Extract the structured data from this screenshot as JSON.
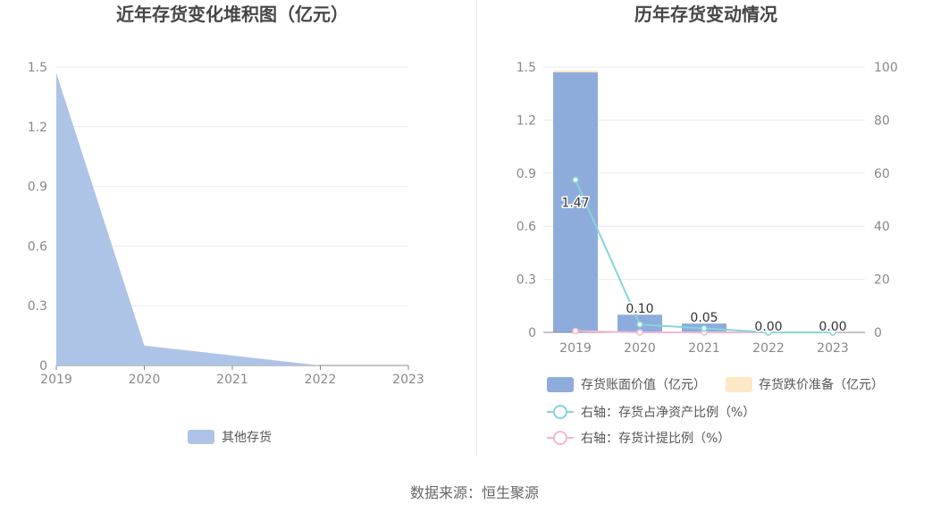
{
  "left_title": "近年存货变化堆积图（亿元）",
  "right_title": "历年存货变动情况",
  "source": "数据来源：恒生聚源",
  "colors": {
    "area": "#aec4e6",
    "bar_value": "#8eacdb",
    "bar_reserve": "#fde7c4",
    "line_ratio": "#86d4da",
    "line_provision": "#f0b8d6",
    "grid": "#e6e9f0",
    "axis": "#888888"
  },
  "chart_data": [
    {
      "type": "area",
      "title": "近年存货变化堆积图（亿元）",
      "x": [
        "2019",
        "2020",
        "2021",
        "2022",
        "2023"
      ],
      "yticks": [
        "0",
        "0.3",
        "0.6",
        "0.9",
        "1.2",
        "1.5"
      ],
      "ylim": [
        0,
        1.5
      ],
      "series": [
        {
          "name": "其他存货",
          "values": [
            1.47,
            0.1,
            0.05,
            0.0,
            0.0
          ]
        }
      ],
      "legend": "bottom",
      "grid": true
    },
    {
      "type": "bar",
      "title": "历年存货变动情况",
      "categories": [
        "2019",
        "2020",
        "2021",
        "2022",
        "2023"
      ],
      "yticks_left": [
        "0",
        "0.3",
        "0.6",
        "0.9",
        "1.2",
        "1.5"
      ],
      "ylim_left": [
        0,
        1.5
      ],
      "yticks_right": [
        "0",
        "20",
        "40",
        "60",
        "80",
        "100"
      ],
      "ylim_right": [
        0,
        100
      ],
      "series": [
        {
          "name": "存货账面价值（亿元）",
          "type": "bar",
          "axis": "left",
          "values": [
            1.47,
            0.1,
            0.05,
            0.0,
            0.0
          ],
          "labels": [
            "1.47",
            "0.10",
            "0.05",
            "0.00",
            "0.00"
          ]
        },
        {
          "name": "存货跌价准备（亿元）",
          "type": "bar",
          "axis": "left",
          "values": [
            0.01,
            0.0,
            0.0,
            0.0,
            0.0
          ]
        },
        {
          "name": "右轴：存货占净资产比例（%）",
          "type": "line",
          "axis": "right",
          "values": [
            57.5,
            3.0,
            1.5,
            0.0,
            0.0
          ]
        },
        {
          "name": "右轴：存货计提比例（%）",
          "type": "line",
          "axis": "right",
          "values": [
            0.5,
            0.0,
            0.0,
            0.0,
            0.0
          ]
        }
      ],
      "legend": "bottom",
      "grid": true
    }
  ]
}
